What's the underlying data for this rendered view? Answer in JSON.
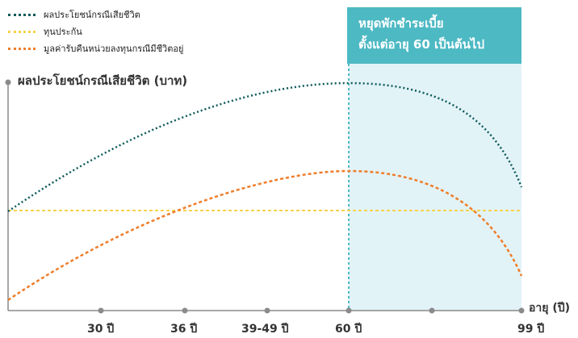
{
  "legend": {
    "items": [
      {
        "label": "ผลประโยชน์กรณีเสียชีวิต",
        "color": "#0e5a5a"
      },
      {
        "label": "ทุนประกัน",
        "color": "#f7d24a"
      },
      {
        "label": "มูลค่ารับคืนหน่วยลงทุนกรณีมีชีวิตอยู่",
        "color": "#ef7d2a"
      }
    ]
  },
  "callout": {
    "line1": "หยุดพักชำระเบี้ย",
    "line2": "ตั้งแต่อายุ 60 เป็นต้นไป",
    "color": "#4db9c3"
  },
  "axes": {
    "y_title": "ผลประโยชน์กรณีเสียชีวิต (บาท)",
    "x_title": "อายุ (ปี)"
  },
  "ticks": [
    {
      "label": "30 ปี",
      "value": 30
    },
    {
      "label": "36 ปี",
      "value": 36
    },
    {
      "label": "39-49 ปี",
      "value": 44
    },
    {
      "label": "60 ปี",
      "value": 60
    },
    {
      "label": "99 ปี",
      "value": 99
    }
  ],
  "colors": {
    "axis": "#8a8a8a",
    "highlight_region": "#e2f3f7",
    "divider": "#4db9c3"
  }
}
